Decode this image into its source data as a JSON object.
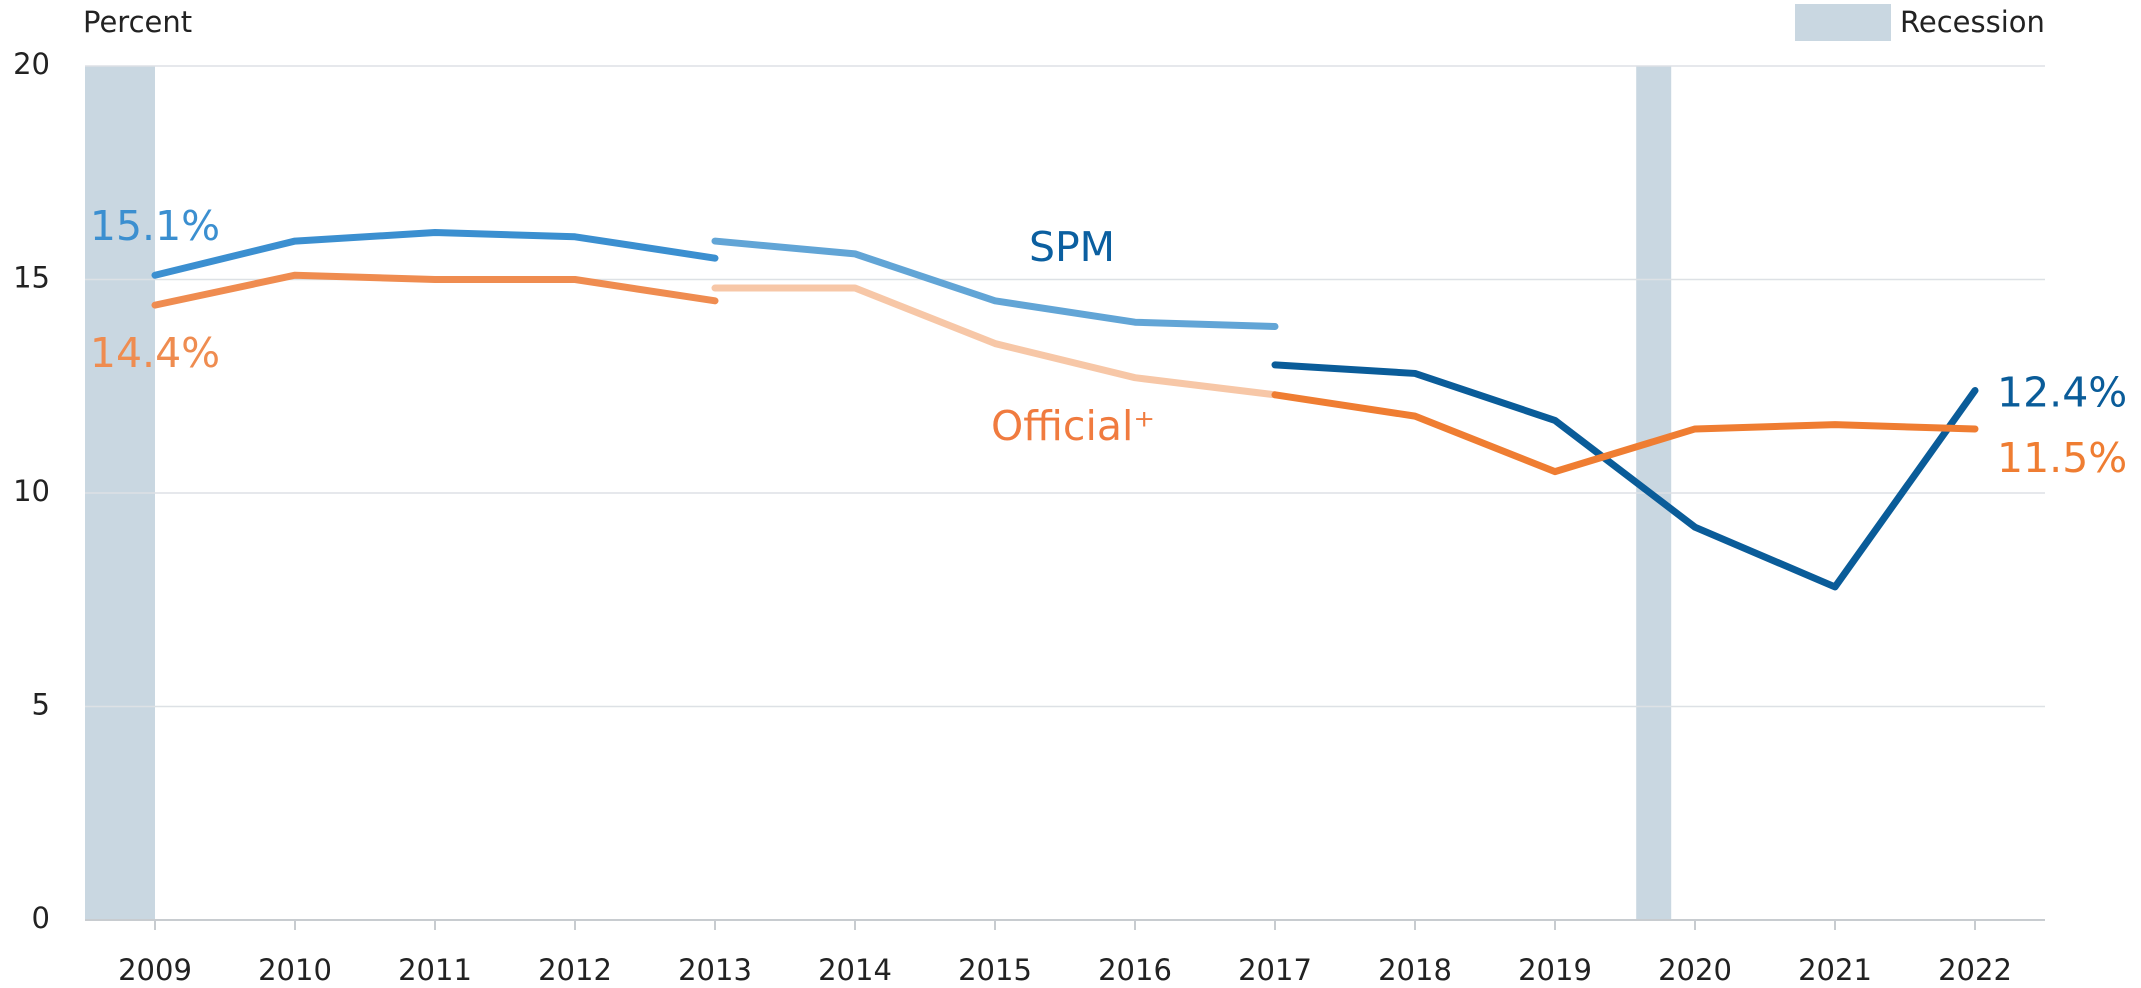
{
  "chart_data": {
    "type": "line",
    "y_label": "Percent",
    "x": [
      2009,
      2010,
      2011,
      2012,
      2013,
      2014,
      2015,
      2016,
      2017,
      2018,
      2019,
      2020,
      2021,
      2022
    ],
    "xlim": [
      2008.5,
      2022.5
    ],
    "xticks": [
      2009,
      2010,
      2011,
      2012,
      2013,
      2014,
      2015,
      2016,
      2017,
      2018,
      2019,
      2020,
      2021,
      2022
    ],
    "ylim": [
      0,
      20
    ],
    "yticks": [
      0,
      5,
      10,
      15,
      20
    ],
    "grid": true,
    "series": [
      {
        "name": "SPM",
        "color": "#0b5fa0",
        "segments": [
          {
            "color": "#3b8fd0",
            "values": [
              15.1,
              15.9,
              16.1,
              16.0,
              15.5,
              null,
              null,
              null,
              null,
              null,
              null,
              null,
              null,
              null
            ],
            "value_labels": [
              "15.1%",
              null,
              null,
              null,
              null,
              null,
              null,
              null,
              null,
              null,
              null,
              null,
              null,
              null
            ]
          },
          {
            "color": "#62a5d6",
            "values": [
              null,
              null,
              null,
              null,
              15.9,
              15.6,
              14.5,
              14.0,
              13.9,
              null,
              null,
              null,
              null,
              null
            ]
          },
          {
            "color": "#0a5c99",
            "values": [
              null,
              null,
              null,
              null,
              null,
              null,
              null,
              null,
              13.0,
              12.8,
              11.7,
              9.2,
              7.8,
              12.4
            ],
            "value_labels": [
              null,
              null,
              null,
              null,
              null,
              null,
              null,
              null,
              null,
              null,
              null,
              null,
              null,
              "12.4%"
            ]
          }
        ]
      },
      {
        "name": "Official⁺",
        "color": "#f07b3f",
        "segments": [
          {
            "color": "#ef8c50",
            "values": [
              14.4,
              15.1,
              15.0,
              15.0,
              14.5,
              null,
              null,
              null,
              null,
              null,
              null,
              null,
              null,
              null
            ],
            "value_labels": [
              "14.4%",
              null,
              null,
              null,
              null,
              null,
              null,
              null,
              null,
              null,
              null,
              null,
              null,
              null
            ]
          },
          {
            "color": "#f7c7a7",
            "values": [
              null,
              null,
              null,
              null,
              14.8,
              14.8,
              13.5,
              12.7,
              12.3,
              null,
              null,
              null,
              null,
              null
            ]
          },
          {
            "color": "#ef7d32",
            "values": [
              null,
              null,
              null,
              null,
              null,
              null,
              null,
              null,
              12.3,
              11.8,
              10.5,
              11.5,
              11.6,
              11.5
            ],
            "value_labels": [
              null,
              null,
              null,
              null,
              null,
              null,
              null,
              null,
              null,
              null,
              null,
              null,
              null,
              "11.5%"
            ]
          }
        ]
      }
    ],
    "recession": {
      "label": "Recession",
      "color": "#c9d7e1",
      "bands": [
        [
          2008.5,
          2009.0
        ],
        [
          2019.58,
          2019.83
        ]
      ]
    }
  }
}
